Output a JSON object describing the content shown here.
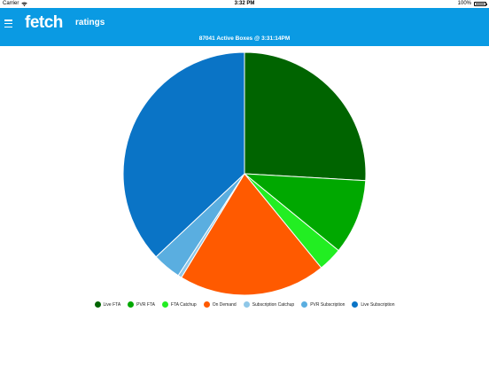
{
  "status_bar": {
    "carrier": "Carrier",
    "time": "3:32 PM",
    "battery": "100%"
  },
  "header": {
    "logo": "fetch",
    "title": "ratings",
    "subtitle": "87041 Active Boxes @ 3:31:14PM"
  },
  "colors": {
    "header_bg": "#0a9ae3"
  },
  "chart_data": {
    "type": "pie",
    "title": "",
    "legend_position": "bottom",
    "categories": [
      "Live FTA",
      "PVR FTA",
      "FTA Catchup",
      "On Demand",
      "Subscription Catchup",
      "PVR Subscription",
      "Live Subscription"
    ],
    "values": [
      25.9,
      10.0,
      3.2,
      19.6,
      0.5,
      3.8,
      37.0
    ],
    "colors": [
      "#006400",
      "#00a800",
      "#22ee22",
      "#ff5a00",
      "#8fc7e8",
      "#5aaee0",
      "#0a74c6"
    ]
  }
}
